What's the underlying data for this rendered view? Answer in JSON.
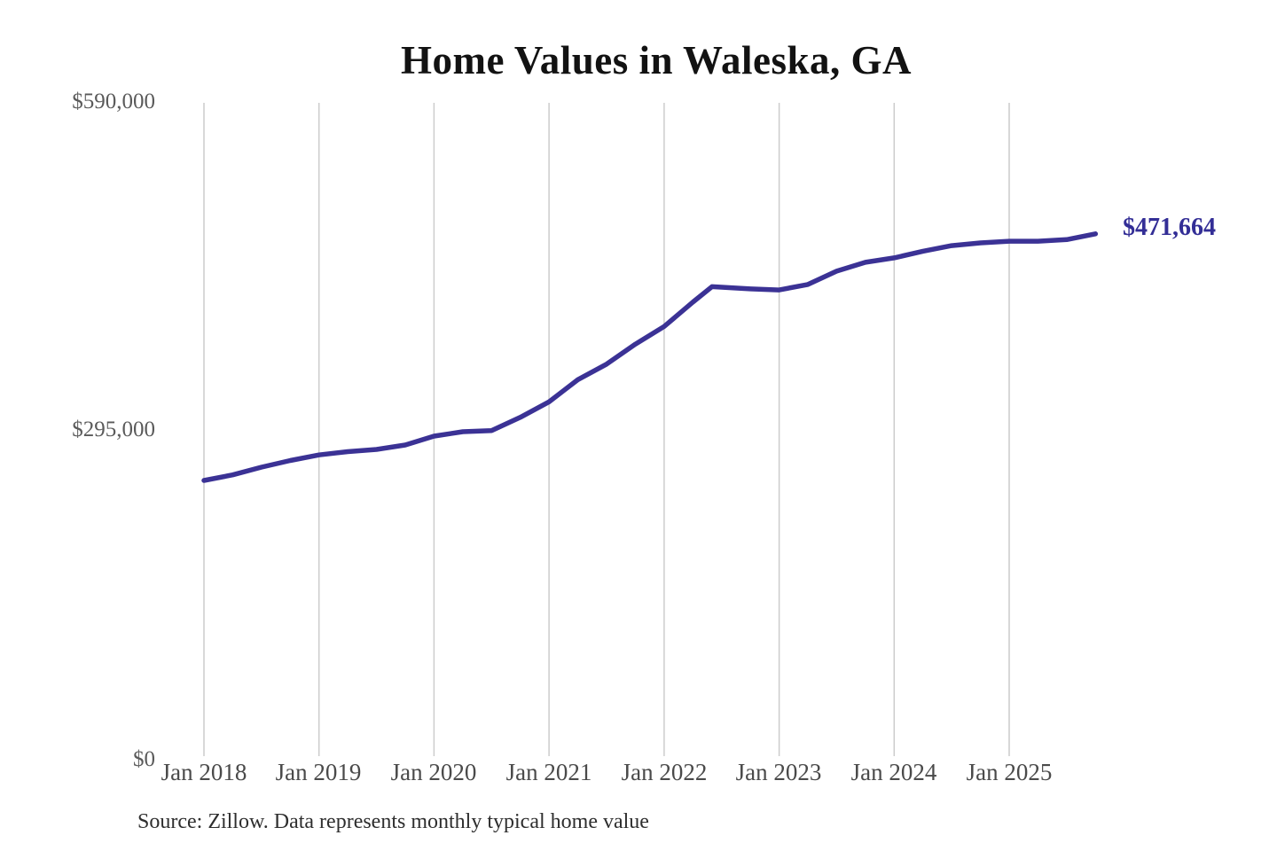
{
  "title": "Home Values in Waleska, GA",
  "y_axis": {
    "labels": [
      "$590,000",
      "$295,000",
      "$0"
    ]
  },
  "x_axis": {
    "labels": [
      "Jan 2018",
      "Jan 2019",
      "Jan 2020",
      "Jan 2021",
      "Jan 2022",
      "Jan 2023",
      "Jan 2024",
      "Jan 2025"
    ]
  },
  "end_label": "$471,664",
  "source_note": "Source: Zillow. Data represents monthly typical home value",
  "colors": {
    "line": "#3b3295",
    "end_label": "#332e96",
    "gridline": "#cccccc",
    "axis_text": "#4a4a4a",
    "title_text": "#121212"
  },
  "chart_data": {
    "type": "line",
    "title": "Home Values in Waleska, GA",
    "series_name": "Monthly typical home value",
    "source": "Source: Zillow. Data represents monthly typical home value",
    "x_unit": "month",
    "x_range": [
      "2018-01",
      "2025-10"
    ],
    "ylim": [
      0,
      590000
    ],
    "y_tick_values": [
      0,
      295000,
      590000
    ],
    "y_tick_labels": [
      "$0",
      "$295,000",
      "$590,000"
    ],
    "x_tick_labels": [
      "Jan 2018",
      "Jan 2019",
      "Jan 2020",
      "Jan 2021",
      "Jan 2022",
      "Jan 2023",
      "Jan 2024",
      "Jan 2025"
    ],
    "grid": "vertical-only",
    "legend": "none",
    "final_value": 471664,
    "final_value_label": "$471,664",
    "points": [
      {
        "month": "2018-01",
        "value": 249000
      },
      {
        "month": "2018-04",
        "value": 254000
      },
      {
        "month": "2018-07",
        "value": 261000
      },
      {
        "month": "2018-10",
        "value": 267000
      },
      {
        "month": "2019-01",
        "value": 272000
      },
      {
        "month": "2019-04",
        "value": 275000
      },
      {
        "month": "2019-07",
        "value": 277000
      },
      {
        "month": "2019-10",
        "value": 281000
      },
      {
        "month": "2020-01",
        "value": 289000
      },
      {
        "month": "2020-04",
        "value": 293000
      },
      {
        "month": "2020-07",
        "value": 294000
      },
      {
        "month": "2020-10",
        "value": 306000
      },
      {
        "month": "2021-01",
        "value": 320000
      },
      {
        "month": "2021-04",
        "value": 340000
      },
      {
        "month": "2021-07",
        "value": 354000
      },
      {
        "month": "2021-10",
        "value": 372000
      },
      {
        "month": "2022-01",
        "value": 388000
      },
      {
        "month": "2022-04",
        "value": 410000
      },
      {
        "month": "2022-06",
        "value": 424000
      },
      {
        "month": "2022-10",
        "value": 422000
      },
      {
        "month": "2023-01",
        "value": 421000
      },
      {
        "month": "2023-04",
        "value": 426000
      },
      {
        "month": "2023-07",
        "value": 438000
      },
      {
        "month": "2023-10",
        "value": 446000
      },
      {
        "month": "2024-01",
        "value": 450000
      },
      {
        "month": "2024-04",
        "value": 456000
      },
      {
        "month": "2024-07",
        "value": 461000
      },
      {
        "month": "2024-10",
        "value": 463500
      },
      {
        "month": "2025-01",
        "value": 465000
      },
      {
        "month": "2025-04",
        "value": 465000
      },
      {
        "month": "2025-07",
        "value": 466500
      },
      {
        "month": "2025-10",
        "value": 471664
      }
    ]
  }
}
